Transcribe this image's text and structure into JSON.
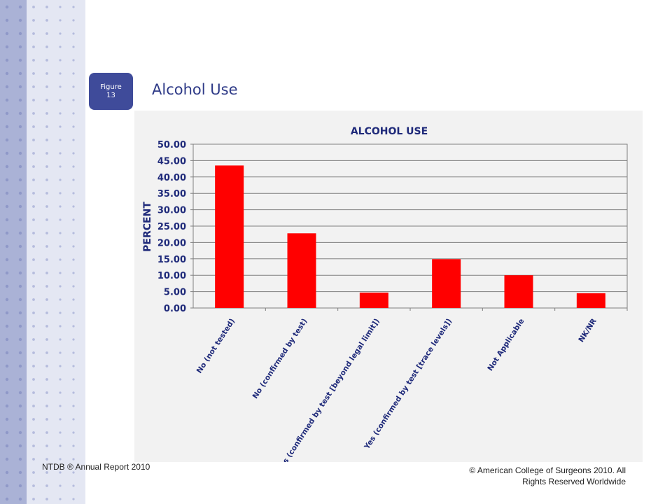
{
  "slide": {
    "figure_label": "Figure",
    "figure_number": "13",
    "title": "Alcohol Use",
    "footer_left": "NTDB ® Annual Report 2010",
    "footer_right": "© American College of Surgeons 2010.  All Rights Reserved Worldwide"
  },
  "colors": {
    "badge": "#3f4b9a",
    "title": "#2e3a87",
    "axis_text": "#1f2a7a",
    "bar": "#ff0000",
    "panel": "#f2f2f2",
    "band": "#aab2d6"
  },
  "chart_data": {
    "type": "bar",
    "title": "ALCOHOL USE",
    "xlabel": "",
    "ylabel": "PERCENT",
    "ylim": [
      0,
      50
    ],
    "yticks": [
      "0.00",
      "5.00",
      "10.00",
      "15.00",
      "20.00",
      "25.00",
      "30.00",
      "35.00",
      "40.00",
      "45.00",
      "50.00"
    ],
    "grid": true,
    "categories": [
      "No (not tested)",
      "No (confirmed by test)",
      "Yes (confirmed by test [beyond legal limit])",
      "Yes (confirmed by test [trace levels])",
      "Not Applicable",
      "NK/NR"
    ],
    "values": [
      43.5,
      22.8,
      4.7,
      14.9,
      10.0,
      4.5
    ]
  }
}
